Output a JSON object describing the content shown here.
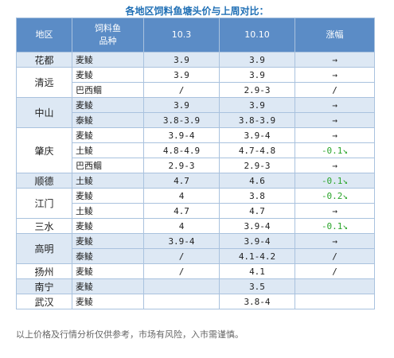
{
  "title": "各地区饲料鱼塘头价与上周对比：",
  "table": {
    "header": [
      "地区",
      [
        "饲料鱼",
        "品种"
      ],
      "10.3",
      "10.10",
      "涨幅"
    ],
    "groups": [
      {
        "region": "花都",
        "rows": [
          [
            "麦鲮",
            "3.9",
            "3.9",
            "→"
          ]
        ]
      },
      {
        "region": "清远",
        "rows": [
          [
            "麦鲮",
            "3.9",
            "3.9",
            "→"
          ],
          [
            "巴西鲴",
            "/",
            "2.9-3",
            "/"
          ]
        ]
      },
      {
        "region": "中山",
        "rows": [
          [
            "麦鲮",
            "3.9",
            "3.9",
            "→"
          ],
          [
            "泰鲮",
            "3.8-3.9",
            "3.8-3.9",
            "→"
          ]
        ]
      },
      {
        "region": "肇庆",
        "rows": [
          [
            "麦鲮",
            "3.9-4",
            "3.9-4",
            "→"
          ],
          [
            "土鲮",
            "4.8-4.9",
            "4.7-4.8",
            "-0.1↘"
          ],
          [
            "巴西鲴",
            "2.9-3",
            "2.9-3",
            "→"
          ]
        ]
      },
      {
        "region": "顺德",
        "rows": [
          [
            "土鲮",
            "4.7",
            "4.6",
            "-0.1↘"
          ]
        ]
      },
      {
        "region": "江门",
        "rows": [
          [
            "麦鲮",
            "4",
            "3.8",
            "-0.2↘"
          ],
          [
            "土鲮",
            "4.7",
            "4.7",
            "→"
          ]
        ]
      },
      {
        "region": "三水",
        "rows": [
          [
            "麦鲮",
            "4",
            "3.9-4",
            "-0.1↘"
          ]
        ]
      },
      {
        "region": "高明",
        "rows": [
          [
            "麦鲮",
            "3.9-4",
            "3.9-4",
            "→"
          ],
          [
            "泰鲮",
            "/",
            "4.1-4.2",
            "/"
          ]
        ]
      },
      {
        "region": "扬州",
        "rows": [
          [
            "麦鲮",
            "/",
            "4.1",
            "/"
          ]
        ]
      },
      {
        "region": "南宁",
        "rows": [
          [
            "麦鲮",
            null,
            "3.5",
            null
          ]
        ]
      },
      {
        "region": "武汉",
        "rows": [
          [
            "麦鲮",
            null,
            "3.8-4",
            null
          ]
        ]
      }
    ]
  },
  "footer": "以上价格及行情分析仅供参考，市场有风险，入市需谨慎。"
}
